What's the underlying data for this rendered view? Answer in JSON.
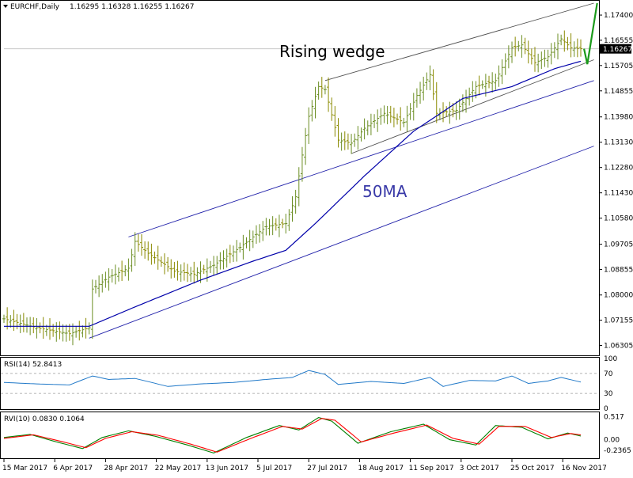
{
  "header": {
    "symbol": "EURCHF,Daily",
    "ohlc": "1.16295 1.16328 1.16255 1.16267",
    "menu_icon": "triangle-down-icon"
  },
  "annotations": {
    "pattern_label": "Rising wedge",
    "ma_label": "50MA"
  },
  "chart_data": [
    {
      "type": "candlestick",
      "panel": "price",
      "title": "EURCHF,Daily",
      "ylim": [
        1.06,
        1.178
      ],
      "y_ticks": [
        "1.17400",
        "1.16555",
        "1.15705",
        "1.14855",
        "1.13980",
        "1.13130",
        "1.12280",
        "1.11430",
        "1.10580",
        "1.09705",
        "1.08855",
        "1.08000",
        "1.07155",
        "1.06305"
      ],
      "current_price": "1.16267",
      "x_ticks": [
        "15 Mar 2017",
        "6 Apr 2017",
        "28 Apr 2017",
        "22 May 2017",
        "13 Jun 2017",
        "5 Jul 2017",
        "27 Jul 2017",
        "18 Aug 2017",
        "11 Sep 2017",
        "3 Oct 2017",
        "25 Oct 2017",
        "16 Nov 2017"
      ],
      "anchors": [
        {
          "i": 0,
          "v": 1.072
        },
        {
          "i": 10,
          "v": 1.069
        },
        {
          "i": 20,
          "v": 1.067
        },
        {
          "i": 26,
          "v": 1.069
        },
        {
          "i": 27,
          "v": 1.082
        },
        {
          "i": 32,
          "v": 1.086
        },
        {
          "i": 38,
          "v": 1.089
        },
        {
          "i": 40,
          "v": 1.098
        },
        {
          "i": 44,
          "v": 1.094
        },
        {
          "i": 52,
          "v": 1.088
        },
        {
          "i": 58,
          "v": 1.087
        },
        {
          "i": 64,
          "v": 1.09
        },
        {
          "i": 72,
          "v": 1.096
        },
        {
          "i": 80,
          "v": 1.103
        },
        {
          "i": 86,
          "v": 1.104
        },
        {
          "i": 89,
          "v": 1.113
        },
        {
          "i": 91,
          "v": 1.127
        },
        {
          "i": 93,
          "v": 1.14
        },
        {
          "i": 96,
          "v": 1.15
        },
        {
          "i": 98,
          "v": 1.149
        },
        {
          "i": 102,
          "v": 1.132
        },
        {
          "i": 106,
          "v": 1.131
        },
        {
          "i": 110,
          "v": 1.136
        },
        {
          "i": 116,
          "v": 1.141
        },
        {
          "i": 122,
          "v": 1.138
        },
        {
          "i": 126,
          "v": 1.147
        },
        {
          "i": 130,
          "v": 1.154
        },
        {
          "i": 132,
          "v": 1.141
        },
        {
          "i": 138,
          "v": 1.142
        },
        {
          "i": 144,
          "v": 1.15
        },
        {
          "i": 150,
          "v": 1.152
        },
        {
          "i": 155,
          "v": 1.163
        },
        {
          "i": 158,
          "v": 1.164
        },
        {
          "i": 162,
          "v": 1.158
        },
        {
          "i": 166,
          "v": 1.16
        },
        {
          "i": 170,
          "v": 1.166
        },
        {
          "i": 173,
          "v": 1.163
        },
        {
          "i": 176,
          "v": 1.1627
        }
      ],
      "ma50": [
        {
          "i": 0,
          "v": 1.0695
        },
        {
          "i": 26,
          "v": 1.0695
        },
        {
          "i": 40,
          "v": 1.076
        },
        {
          "i": 60,
          "v": 1.085
        },
        {
          "i": 75,
          "v": 1.091
        },
        {
          "i": 86,
          "v": 1.095
        },
        {
          "i": 95,
          "v": 1.104
        },
        {
          "i": 110,
          "v": 1.12
        },
        {
          "i": 125,
          "v": 1.135
        },
        {
          "i": 140,
          "v": 1.146
        },
        {
          "i": 155,
          "v": 1.15
        },
        {
          "i": 168,
          "v": 1.156
        },
        {
          "i": 176,
          "v": 1.1585
        }
      ],
      "trendlines": [
        {
          "name": "wedge-upper",
          "from": {
            "i": 98,
            "v": 1.152
          },
          "to": {
            "i": 180,
            "v": 1.178
          }
        },
        {
          "name": "wedge-lower",
          "from": {
            "i": 106,
            "v": 1.1275
          },
          "to": {
            "i": 180,
            "v": 1.159
          }
        },
        {
          "name": "channel-top",
          "from": {
            "i": 38,
            "v": 1.0995
          },
          "to": {
            "i": 180,
            "v": 1.152
          }
        },
        {
          "name": "channel-bottom",
          "from": {
            "i": 26,
            "v": 1.0655
          },
          "to": {
            "i": 180,
            "v": 1.13
          }
        }
      ],
      "projection": [
        {
          "i": 177,
          "v": 1.1627
        },
        {
          "i": 178,
          "v": 1.1575
        },
        {
          "i": 181,
          "v": 1.178
        }
      ]
    },
    {
      "type": "line",
      "panel": "rsi",
      "label": "RSI(14) 52.8413",
      "ylim": [
        0,
        100
      ],
      "levels": [
        70,
        30
      ],
      "y_ticks": [
        "100",
        "70",
        "30",
        "0"
      ],
      "anchors": [
        {
          "i": 0,
          "v": 52
        },
        {
          "i": 10,
          "v": 49
        },
        {
          "i": 20,
          "v": 47
        },
        {
          "i": 27,
          "v": 65
        },
        {
          "i": 32,
          "v": 58
        },
        {
          "i": 40,
          "v": 60
        },
        {
          "i": 50,
          "v": 44
        },
        {
          "i": 60,
          "v": 49
        },
        {
          "i": 70,
          "v": 52
        },
        {
          "i": 80,
          "v": 58
        },
        {
          "i": 88,
          "v": 62
        },
        {
          "i": 93,
          "v": 76
        },
        {
          "i": 98,
          "v": 68
        },
        {
          "i": 102,
          "v": 48
        },
        {
          "i": 112,
          "v": 54
        },
        {
          "i": 122,
          "v": 50
        },
        {
          "i": 130,
          "v": 62
        },
        {
          "i": 134,
          "v": 44
        },
        {
          "i": 142,
          "v": 56
        },
        {
          "i": 150,
          "v": 55
        },
        {
          "i": 155,
          "v": 65
        },
        {
          "i": 160,
          "v": 50
        },
        {
          "i": 166,
          "v": 55
        },
        {
          "i": 170,
          "v": 62
        },
        {
          "i": 176,
          "v": 52.8
        }
      ]
    },
    {
      "type": "line",
      "panel": "rvi",
      "label": "RVI(10) 0.0830 0.1064",
      "ylim": [
        -0.4,
        0.6
      ],
      "y_ticks": [
        "0.517",
        "0.00",
        "-0.2365"
      ],
      "series": [
        {
          "name": "0.0830",
          "color": "#008000",
          "anchors": [
            {
              "i": 0,
              "v": 0.05
            },
            {
              "i": 8,
              "v": 0.12
            },
            {
              "i": 16,
              "v": -0.05
            },
            {
              "i": 24,
              "v": -0.2
            },
            {
              "i": 30,
              "v": 0.05
            },
            {
              "i": 38,
              "v": 0.2
            },
            {
              "i": 46,
              "v": 0.08
            },
            {
              "i": 56,
              "v": -0.12
            },
            {
              "i": 64,
              "v": -0.3
            },
            {
              "i": 74,
              "v": 0.05
            },
            {
              "i": 84,
              "v": 0.32
            },
            {
              "i": 90,
              "v": 0.22
            },
            {
              "i": 96,
              "v": 0.5
            },
            {
              "i": 100,
              "v": 0.42
            },
            {
              "i": 108,
              "v": -0.08
            },
            {
              "i": 118,
              "v": 0.18
            },
            {
              "i": 128,
              "v": 0.35
            },
            {
              "i": 136,
              "v": 0.0
            },
            {
              "i": 144,
              "v": -0.12
            },
            {
              "i": 150,
              "v": 0.32
            },
            {
              "i": 158,
              "v": 0.28
            },
            {
              "i": 166,
              "v": 0.02
            },
            {
              "i": 172,
              "v": 0.15
            },
            {
              "i": 176,
              "v": 0.083
            }
          ]
        },
        {
          "name": "0.1064",
          "color": "#ff0000",
          "anchors": [
            {
              "i": 0,
              "v": 0.03
            },
            {
              "i": 9,
              "v": 0.11
            },
            {
              "i": 17,
              "v": -0.03
            },
            {
              "i": 25,
              "v": -0.18
            },
            {
              "i": 31,
              "v": 0.03
            },
            {
              "i": 39,
              "v": 0.18
            },
            {
              "i": 47,
              "v": 0.1
            },
            {
              "i": 57,
              "v": -0.1
            },
            {
              "i": 65,
              "v": -0.28
            },
            {
              "i": 75,
              "v": 0.02
            },
            {
              "i": 85,
              "v": 0.3
            },
            {
              "i": 91,
              "v": 0.24
            },
            {
              "i": 97,
              "v": 0.48
            },
            {
              "i": 101,
              "v": 0.44
            },
            {
              "i": 109,
              "v": -0.05
            },
            {
              "i": 119,
              "v": 0.15
            },
            {
              "i": 129,
              "v": 0.33
            },
            {
              "i": 137,
              "v": 0.03
            },
            {
              "i": 145,
              "v": -0.1
            },
            {
              "i": 151,
              "v": 0.3
            },
            {
              "i": 159,
              "v": 0.3
            },
            {
              "i": 167,
              "v": 0.05
            },
            {
              "i": 173,
              "v": 0.14
            },
            {
              "i": 176,
              "v": 0.1064
            }
          ]
        }
      ]
    }
  ],
  "colors": {
    "grid": "#dcdcdc",
    "separator": "#000000",
    "bar": "#8a8a00",
    "bar_up": "#6b8e23",
    "ma": "#0000aa",
    "wedge": "#505050",
    "channel": "#2222aa",
    "projection": "#1a9a1a",
    "rsi": "#1f78c8",
    "levels": "#9a9a9a"
  }
}
